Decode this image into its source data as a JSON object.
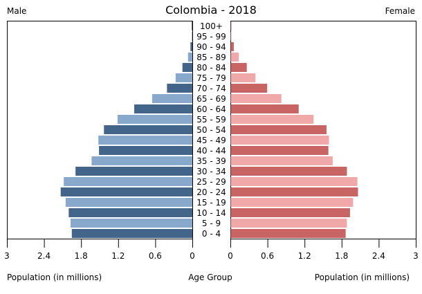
{
  "chart_data": {
    "type": "bar",
    "subtype": "population-pyramid",
    "title": "Colombia - 2018",
    "left_label": "Male",
    "right_label": "Female",
    "xlabel_left": "Population (in millions)",
    "xlabel_center": "Age Group",
    "xlabel_right": "Population (in millions)",
    "xlim": [
      0,
      3
    ],
    "ticks": [
      "0",
      "0.6",
      "1.2",
      "1.8",
      "2.4",
      "3"
    ],
    "tick_values": [
      0,
      0.6,
      1.2,
      1.8,
      2.4,
      3
    ],
    "categories": [
      "0 - 4",
      "5 - 9",
      "10 - 14",
      "15 - 19",
      "20 - 24",
      "25 - 29",
      "30 - 34",
      "35 - 39",
      "40 - 44",
      "45 - 49",
      "50 - 54",
      "55 - 59",
      "60 - 64",
      "65 - 69",
      "70 - 74",
      "75 - 79",
      "80 - 84",
      "85 - 89",
      "90 - 94",
      "95 - 99",
      "100+"
    ],
    "series": [
      {
        "name": "Male",
        "colors": [
          "#44658a",
          "#88a8cc"
        ],
        "values": [
          1.95,
          1.97,
          2.0,
          2.05,
          2.13,
          2.08,
          1.89,
          1.63,
          1.51,
          1.52,
          1.43,
          1.21,
          0.94,
          0.65,
          0.41,
          0.27,
          0.16,
          0.07,
          0.03,
          0.005,
          0.01
        ]
      },
      {
        "name": "Female",
        "colors": [
          "#c86464",
          "#f0a8a8"
        ],
        "values": [
          1.86,
          1.88,
          1.93,
          1.98,
          2.06,
          2.05,
          1.88,
          1.65,
          1.58,
          1.59,
          1.55,
          1.34,
          1.1,
          0.82,
          0.59,
          0.4,
          0.26,
          0.13,
          0.05,
          0.01,
          0.01
        ]
      }
    ],
    "grid": false
  }
}
